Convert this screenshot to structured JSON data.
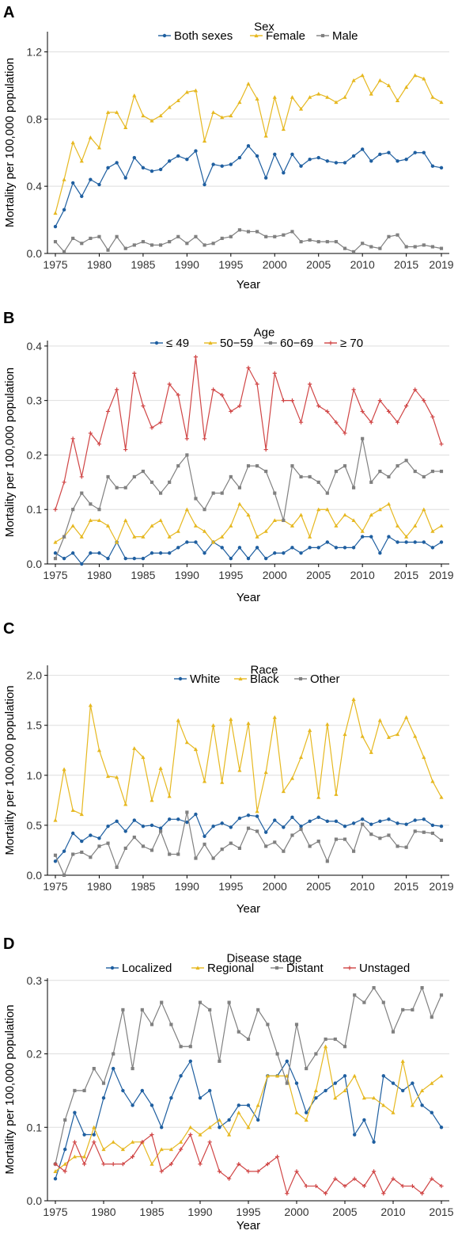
{
  "figure": {
    "xlabel": "Year",
    "ylabel": "Mortality per 100,000 population"
  },
  "chart_data": [
    {
      "panel": "A",
      "title": "Sex",
      "type": "line",
      "x": [
        1975,
        1976,
        1977,
        1978,
        1979,
        1980,
        1981,
        1982,
        1983,
        1984,
        1985,
        1986,
        1987,
        1988,
        1989,
        1990,
        1991,
        1992,
        1993,
        1994,
        1995,
        1996,
        1997,
        1998,
        1999,
        2000,
        2001,
        2002,
        2003,
        2004,
        2005,
        2006,
        2007,
        2008,
        2009,
        2010,
        2011,
        2012,
        2013,
        2014,
        2015,
        2016,
        2017,
        2018,
        2019
      ],
      "xticks": [
        "1975",
        "1980",
        "1985",
        "1990",
        "1995",
        "2000",
        "2005",
        "2010",
        "2015",
        "2019"
      ],
      "ylim": [
        0,
        1.32
      ],
      "yticks": [
        "0.0",
        "0.4",
        "0.8",
        "1.2"
      ],
      "xlabel": "Year",
      "ylabel": "Mortality per 100,000 population",
      "legend_position": "top",
      "grid": "horizontal",
      "series": [
        {
          "name": "Both sexes",
          "color": "#1f5fa0",
          "marker": "circle",
          "values": [
            0.16,
            0.26,
            0.42,
            0.34,
            0.44,
            0.41,
            0.51,
            0.54,
            0.45,
            0.57,
            0.51,
            0.49,
            0.5,
            0.55,
            0.58,
            0.56,
            0.61,
            0.41,
            0.53,
            0.52,
            0.53,
            0.57,
            0.64,
            0.58,
            0.45,
            0.59,
            0.48,
            0.59,
            0.52,
            0.56,
            0.57,
            0.55,
            0.54,
            0.54,
            0.58,
            0.62,
            0.55,
            0.59,
            0.6,
            0.55,
            0.56,
            0.6,
            0.6,
            0.52,
            0.51
          ]
        },
        {
          "name": "Female",
          "color": "#e6b820",
          "marker": "triangle",
          "values": [
            0.24,
            0.44,
            0.66,
            0.55,
            0.69,
            0.63,
            0.84,
            0.84,
            0.75,
            0.94,
            0.82,
            0.79,
            0.82,
            0.87,
            0.91,
            0.96,
            0.97,
            0.67,
            0.84,
            0.81,
            0.82,
            0.9,
            1.01,
            0.92,
            0.7,
            0.93,
            0.74,
            0.93,
            0.86,
            0.93,
            0.95,
            0.93,
            0.9,
            0.93,
            1.03,
            1.06,
            0.95,
            1.03,
            1.0,
            0.91,
            0.99,
            1.06,
            1.04,
            0.93,
            0.9
          ]
        },
        {
          "name": "Male",
          "color": "#808080",
          "marker": "square",
          "values": [
            0.07,
            0.01,
            0.09,
            0.06,
            0.09,
            0.1,
            0.02,
            0.1,
            0.03,
            0.05,
            0.07,
            0.05,
            0.05,
            0.07,
            0.1,
            0.06,
            0.1,
            0.05,
            0.06,
            0.09,
            0.1,
            0.14,
            0.13,
            0.13,
            0.1,
            0.1,
            0.11,
            0.13,
            0.07,
            0.08,
            0.07,
            0.07,
            0.07,
            0.03,
            0.01,
            0.06,
            0.04,
            0.03,
            0.1,
            0.11,
            0.04,
            0.04,
            0.05,
            0.04,
            0.03
          ]
        }
      ]
    },
    {
      "panel": "B",
      "title": "Age",
      "type": "line",
      "x": [
        1975,
        1976,
        1977,
        1978,
        1979,
        1980,
        1981,
        1982,
        1983,
        1984,
        1985,
        1986,
        1987,
        1988,
        1989,
        1990,
        1991,
        1992,
        1993,
        1994,
        1995,
        1996,
        1997,
        1998,
        1999,
        2000,
        2001,
        2002,
        2003,
        2004,
        2005,
        2006,
        2007,
        2008,
        2009,
        2010,
        2011,
        2012,
        2013,
        2014,
        2015,
        2016,
        2017,
        2018,
        2019
      ],
      "xticks": [
        "1975",
        "1980",
        "1985",
        "1990",
        "1995",
        "2000",
        "2005",
        "2010",
        "2015",
        "2019"
      ],
      "ylim": [
        0,
        0.41
      ],
      "yticks": [
        "0.0",
        "0.1",
        "0.2",
        "0.3",
        "0.4"
      ],
      "xlabel": "Year",
      "ylabel": "Mortality per 100,000 population",
      "legend_position": "top",
      "grid": "horizontal",
      "series": [
        {
          "name": "≤ 49",
          "color": "#1f5fa0",
          "marker": "circle",
          "values": [
            0.02,
            0.01,
            0.02,
            0.0,
            0.02,
            0.02,
            0.01,
            0.04,
            0.01,
            0.01,
            0.01,
            0.02,
            0.02,
            0.02,
            0.03,
            0.04,
            0.04,
            0.02,
            0.04,
            0.03,
            0.01,
            0.03,
            0.01,
            0.03,
            0.01,
            0.02,
            0.02,
            0.03,
            0.02,
            0.03,
            0.03,
            0.04,
            0.03,
            0.03,
            0.03,
            0.05,
            0.05,
            0.02,
            0.05,
            0.04,
            0.04,
            0.04,
            0.04,
            0.03,
            0.04
          ]
        },
        {
          "name": "50−59",
          "color": "#e6b820",
          "marker": "triangle",
          "values": [
            0.04,
            0.05,
            0.07,
            0.05,
            0.08,
            0.08,
            0.07,
            0.04,
            0.08,
            0.05,
            0.05,
            0.07,
            0.08,
            0.05,
            0.06,
            0.1,
            0.07,
            0.06,
            0.04,
            0.05,
            0.07,
            0.11,
            0.09,
            0.05,
            0.06,
            0.08,
            0.08,
            0.07,
            0.09,
            0.05,
            0.1,
            0.1,
            0.07,
            0.09,
            0.08,
            0.06,
            0.09,
            0.1,
            0.11,
            0.07,
            0.05,
            0.07,
            0.1,
            0.06,
            0.07
          ]
        },
        {
          "name": "60−69",
          "color": "#808080",
          "marker": "square",
          "values": [
            0.01,
            0.05,
            0.1,
            0.13,
            0.11,
            0.1,
            0.16,
            0.14,
            0.14,
            0.16,
            0.17,
            0.15,
            0.13,
            0.15,
            0.18,
            0.2,
            0.12,
            0.1,
            0.13,
            0.13,
            0.16,
            0.14,
            0.18,
            0.18,
            0.17,
            0.13,
            0.08,
            0.18,
            0.16,
            0.16,
            0.15,
            0.13,
            0.17,
            0.18,
            0.14,
            0.23,
            0.15,
            0.17,
            0.16,
            0.18,
            0.19,
            0.17,
            0.16,
            0.17,
            0.17
          ]
        },
        {
          "name": "≥ 70",
          "color": "#d04545",
          "marker": "plus",
          "values": [
            0.1,
            0.15,
            0.23,
            0.16,
            0.24,
            0.22,
            0.28,
            0.32,
            0.21,
            0.35,
            0.29,
            0.25,
            0.26,
            0.33,
            0.31,
            0.23,
            0.38,
            0.23,
            0.32,
            0.31,
            0.28,
            0.29,
            0.36,
            0.33,
            0.21,
            0.35,
            0.3,
            0.3,
            0.26,
            0.33,
            0.29,
            0.28,
            0.26,
            0.24,
            0.32,
            0.28,
            0.26,
            0.3,
            0.28,
            0.26,
            0.29,
            0.32,
            0.3,
            0.27,
            0.22
          ]
        }
      ]
    },
    {
      "panel": "C",
      "title": "Race",
      "type": "line",
      "x": [
        1975,
        1976,
        1977,
        1978,
        1979,
        1980,
        1981,
        1982,
        1983,
        1984,
        1985,
        1986,
        1987,
        1988,
        1989,
        1990,
        1991,
        1992,
        1993,
        1994,
        1995,
        1996,
        1997,
        1998,
        1999,
        2000,
        2001,
        2002,
        2003,
        2004,
        2005,
        2006,
        2007,
        2008,
        2009,
        2010,
        2011,
        2012,
        2013,
        2014,
        2015,
        2016,
        2017,
        2018,
        2019
      ],
      "xticks": [
        "1975",
        "1980",
        "1985",
        "1990",
        "1995",
        "2000",
        "2005",
        "2010",
        "2015",
        "2019"
      ],
      "ylim": [
        0,
        2.1
      ],
      "yticks": [
        "0.0",
        "0.5",
        "1.0",
        "1.5",
        "2.0"
      ],
      "xlabel": "Year",
      "ylabel": "Mortality per 100,000 population",
      "legend_position": "top",
      "grid": "horizontal",
      "series": [
        {
          "name": "White",
          "color": "#1f5fa0",
          "marker": "circle",
          "values": [
            0.14,
            0.24,
            0.42,
            0.34,
            0.4,
            0.37,
            0.49,
            0.54,
            0.44,
            0.55,
            0.49,
            0.5,
            0.47,
            0.56,
            0.56,
            0.53,
            0.61,
            0.39,
            0.49,
            0.52,
            0.48,
            0.57,
            0.6,
            0.59,
            0.43,
            0.55,
            0.48,
            0.58,
            0.49,
            0.54,
            0.58,
            0.54,
            0.54,
            0.49,
            0.52,
            0.56,
            0.51,
            0.54,
            0.56,
            0.52,
            0.51,
            0.55,
            0.56,
            0.5,
            0.49
          ]
        },
        {
          "name": "Black",
          "color": "#e6b820",
          "marker": "triangle",
          "values": [
            0.55,
            1.06,
            0.65,
            0.61,
            1.7,
            1.25,
            0.99,
            0.98,
            0.71,
            1.27,
            1.18,
            0.75,
            1.07,
            0.79,
            1.55,
            1.33,
            1.26,
            0.94,
            1.5,
            0.93,
            1.56,
            1.05,
            1.52,
            0.64,
            1.03,
            1.58,
            0.84,
            0.97,
            1.18,
            1.45,
            0.78,
            1.51,
            0.81,
            1.41,
            1.76,
            1.39,
            1.23,
            1.55,
            1.38,
            1.41,
            1.58,
            1.39,
            1.18,
            0.94,
            0.78
          ]
        },
        {
          "name": "Other",
          "color": "#808080",
          "marker": "square",
          "values": [
            0.2,
            0.0,
            0.21,
            0.23,
            0.18,
            0.29,
            0.32,
            0.08,
            0.27,
            0.38,
            0.29,
            0.25,
            0.44,
            0.21,
            0.21,
            0.63,
            0.17,
            0.31,
            0.17,
            0.26,
            0.32,
            0.27,
            0.47,
            0.44,
            0.29,
            0.33,
            0.24,
            0.4,
            0.46,
            0.29,
            0.34,
            0.14,
            0.36,
            0.36,
            0.24,
            0.51,
            0.41,
            0.37,
            0.4,
            0.29,
            0.28,
            0.44,
            0.43,
            0.42,
            0.35
          ]
        }
      ]
    },
    {
      "panel": "D",
      "title": "Disease stage",
      "type": "line",
      "x": [
        1975,
        1976,
        1977,
        1978,
        1979,
        1980,
        1981,
        1982,
        1983,
        1984,
        1985,
        1986,
        1987,
        1988,
        1989,
        1990,
        1991,
        1992,
        1993,
        1994,
        1995,
        1996,
        1997,
        1998,
        1999,
        2000,
        2001,
        2002,
        2003,
        2004,
        2005,
        2006,
        2007,
        2008,
        2009,
        2010,
        2011,
        2012,
        2013,
        2014,
        2015
      ],
      "xticks": [
        "1975",
        "1980",
        "1985",
        "1990",
        "1995",
        "2000",
        "2005",
        "2010",
        "2015"
      ],
      "ylim": [
        0,
        0.303
      ],
      "yticks": [
        "0.0",
        "0.1",
        "0.2",
        "0.3"
      ],
      "xlabel": "Year",
      "ylabel": "Mortality per 100,000 population",
      "legend_position": "top",
      "grid": "horizontal",
      "series": [
        {
          "name": "Localized",
          "color": "#1f5fa0",
          "marker": "circle",
          "values": [
            0.03,
            0.07,
            0.12,
            0.09,
            0.09,
            0.14,
            0.18,
            0.15,
            0.13,
            0.15,
            0.13,
            0.1,
            0.14,
            0.17,
            0.19,
            0.14,
            0.15,
            0.1,
            0.11,
            0.13,
            0.13,
            0.11,
            0.17,
            0.17,
            0.19,
            0.16,
            0.12,
            0.14,
            0.15,
            0.16,
            0.17,
            0.09,
            0.11,
            0.08,
            0.17,
            0.16,
            0.15,
            0.16,
            0.13,
            0.12,
            0.1
          ]
        },
        {
          "name": "Regional",
          "color": "#e6b820",
          "marker": "triangle",
          "values": [
            0.04,
            0.05,
            0.06,
            0.06,
            0.1,
            0.07,
            0.08,
            0.07,
            0.08,
            0.08,
            0.05,
            0.07,
            0.07,
            0.08,
            0.1,
            0.09,
            0.1,
            0.11,
            0.09,
            0.12,
            0.1,
            0.13,
            0.17,
            0.17,
            0.17,
            0.12,
            0.11,
            0.15,
            0.21,
            0.14,
            0.15,
            0.17,
            0.14,
            0.14,
            0.13,
            0.12,
            0.19,
            0.13,
            0.15,
            0.16,
            0.17
          ]
        },
        {
          "name": "Distant",
          "color": "#808080",
          "marker": "square",
          "values": [
            0.05,
            0.11,
            0.15,
            0.15,
            0.18,
            0.16,
            0.2,
            0.26,
            0.18,
            0.26,
            0.24,
            0.27,
            0.24,
            0.21,
            0.21,
            0.27,
            0.26,
            0.19,
            0.27,
            0.23,
            0.22,
            0.26,
            0.24,
            0.2,
            0.16,
            0.24,
            0.18,
            0.2,
            0.22,
            0.22,
            0.21,
            0.28,
            0.27,
            0.29,
            0.27,
            0.23,
            0.26,
            0.26,
            0.29,
            0.25,
            0.28
          ]
        },
        {
          "name": "Unstaged",
          "color": "#d04545",
          "marker": "plus",
          "values": [
            0.05,
            0.04,
            0.08,
            0.05,
            0.08,
            0.05,
            0.05,
            0.05,
            0.06,
            0.08,
            0.09,
            0.04,
            0.05,
            0.07,
            0.09,
            0.05,
            0.08,
            0.04,
            0.03,
            0.05,
            0.04,
            0.04,
            0.05,
            0.06,
            0.01,
            0.04,
            0.02,
            0.02,
            0.01,
            0.03,
            0.02,
            0.03,
            0.02,
            0.04,
            0.01,
            0.03,
            0.02,
            0.02,
            0.01,
            0.03,
            0.02
          ]
        }
      ]
    }
  ]
}
